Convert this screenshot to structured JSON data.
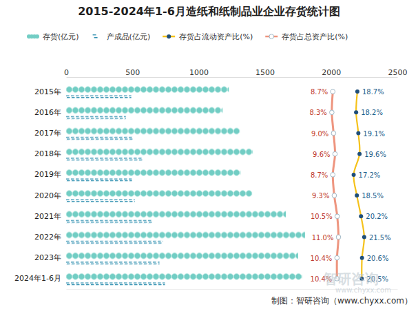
{
  "chart_data": {
    "type": "bar",
    "title": "2015-2024年1-6月造纸和纸制品业企业存货统计图",
    "orientation": "horizontal",
    "categories": [
      "2015年",
      "2016年",
      "2017年",
      "2018年",
      "2019年",
      "2020年",
      "2021年",
      "2022年",
      "2023年",
      "2024年1-6月"
    ],
    "xlim": [
      0,
      2500
    ],
    "xticks": [
      0,
      500,
      1000,
      1500,
      2000,
      2500
    ],
    "y2lim": [
      -100,
      35
    ],
    "y2ticks": [],
    "tick_labels": "x",
    "grid": false,
    "legend": "top",
    "series": [
      {
        "name": "存货(亿元)",
        "type": "bar",
        "color": "#72cdc4",
        "values": [
          1228,
          1181,
          1311,
          1409,
          1316,
          1404,
          1658,
          1803,
          1751,
          1782
        ]
      },
      {
        "name": "产成品(亿元)",
        "type": "bar",
        "color": "#2f8fb0",
        "values": [
          492,
          451,
          503,
          580,
          497,
          518,
          653,
          731,
          705,
          746
        ]
      },
      {
        "name": "存货占流动资产比(%)",
        "type": "line",
        "axis": "y2",
        "color": "#f5c21b",
        "marker": "circle",
        "data_labels": true,
        "values": [
          18.7,
          18.2,
          19.1,
          19.6,
          17.2,
          18.5,
          20.2,
          21.5,
          20.6,
          20.5
        ],
        "value_labels": [
          "18.7%",
          "18.2%",
          "19.1%",
          "19.6%",
          "17.2%",
          "18.5%",
          "20.2%",
          "21.5%",
          "20.6%",
          "20.5%"
        ]
      },
      {
        "name": "存货占总资产比(%)",
        "type": "line",
        "axis": "y2",
        "color": "#ee957f",
        "marker": "circle",
        "data_labels": true,
        "values": [
          8.7,
          8.3,
          9.0,
          9.6,
          8.7,
          9.3,
          10.5,
          11.0,
          10.4,
          10.4
        ],
        "value_labels": [
          "8.7%",
          "8.3%",
          "9.0%",
          "9.6%",
          "8.7%",
          "9.3%",
          "10.5%",
          "11.0%",
          "10.4%",
          "10.4%"
        ]
      }
    ],
    "source": "制图：智研咨询（www.chyxx.com）",
    "watermark": [
      "智研咨询",
      "www.chyxx.com"
    ]
  }
}
